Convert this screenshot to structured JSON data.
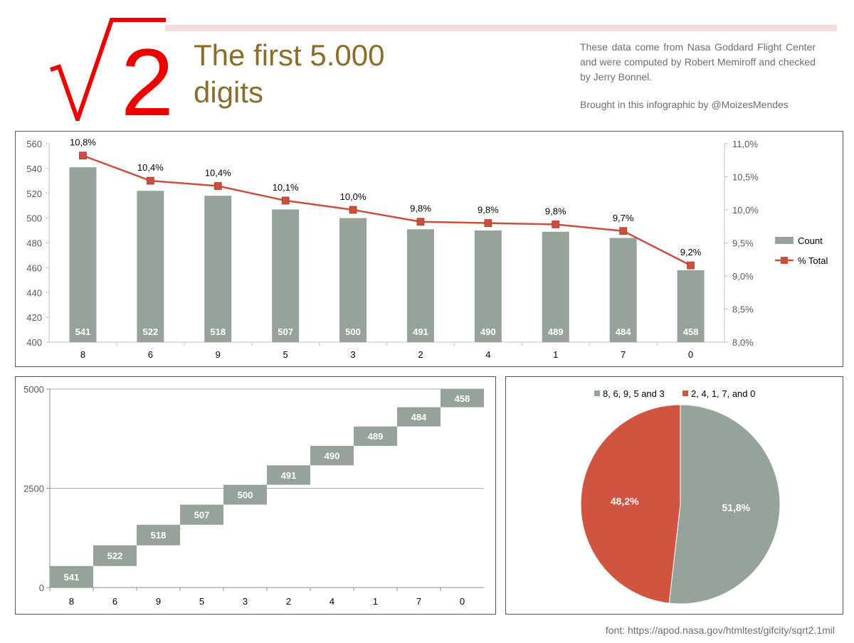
{
  "header": {
    "symbol": "√",
    "number": "2",
    "title_line1": "The first 5.000",
    "title_line2": "digits",
    "source": "These data come from Nasa Goddard Flight Center and were computed by Robert Memiroff and checked by Jerry Bonnel.",
    "credit": "Brought in this infographic by @MoizesMendes"
  },
  "footer": {
    "text": "font: https://apod.nasa.gov/htmltest/gifcity/sqrt2.1mil"
  },
  "colors": {
    "bar": "#95a39a",
    "line": "#c9503c",
    "pie_a": "#95a39a",
    "pie_b": "#d05440",
    "title": "#8a6d2a",
    "accent_red": "#ee0000"
  },
  "chart_data": [
    {
      "type": "bar",
      "categories": [
        "8",
        "6",
        "9",
        "5",
        "3",
        "2",
        "4",
        "1",
        "7",
        "0"
      ],
      "series": [
        {
          "name": "Count",
          "type": "bar",
          "values": [
            541,
            522,
            518,
            507,
            500,
            491,
            490,
            489,
            484,
            458
          ],
          "value_labels": [
            "541",
            "522",
            "518",
            "507",
            "500",
            "491",
            "490",
            "489",
            "484",
            "458"
          ]
        },
        {
          "name": "% Total",
          "type": "line",
          "axis": "right",
          "values": [
            10.82,
            10.44,
            10.36,
            10.14,
            10.0,
            9.82,
            9.8,
            9.78,
            9.68,
            9.16
          ],
          "value_labels": [
            "10,8%",
            "10,4%",
            "10,4%",
            "10,1%",
            "10,0%",
            "9,8%",
            "9,8%",
            "9,8%",
            "9,7%",
            "9,2%"
          ]
        }
      ],
      "y_left": {
        "range": [
          400,
          560
        ],
        "ticks": [
          "400",
          "420",
          "440",
          "460",
          "480",
          "500",
          "520",
          "540",
          "560"
        ]
      },
      "y_right": {
        "range": [
          8.0,
          11.0
        ],
        "ticks": [
          "8,0%",
          "8,5%",
          "9,0%",
          "9,5%",
          "10,0%",
          "10,5%",
          "11,0%"
        ]
      },
      "legend": {
        "position": "right",
        "entries": [
          "Count",
          "% Total"
        ]
      },
      "grid": false
    },
    {
      "type": "waterfall",
      "categories": [
        "8",
        "6",
        "9",
        "5",
        "3",
        "2",
        "4",
        "1",
        "7",
        "0"
      ],
      "values": [
        541,
        522,
        518,
        507,
        500,
        491,
        490,
        489,
        484,
        458
      ],
      "y_range": [
        0,
        5000
      ],
      "y_ticks": [
        "0",
        "2500",
        "5000"
      ],
      "grid": true
    },
    {
      "type": "pie",
      "labels": [
        "8, 6, 9, 5 and 3",
        "2, 4, 1, 7, and 0"
      ],
      "values": [
        51.8,
        48.2
      ],
      "value_labels": [
        "51,8%",
        "48,2%"
      ],
      "legend": {
        "position": "top"
      }
    }
  ]
}
